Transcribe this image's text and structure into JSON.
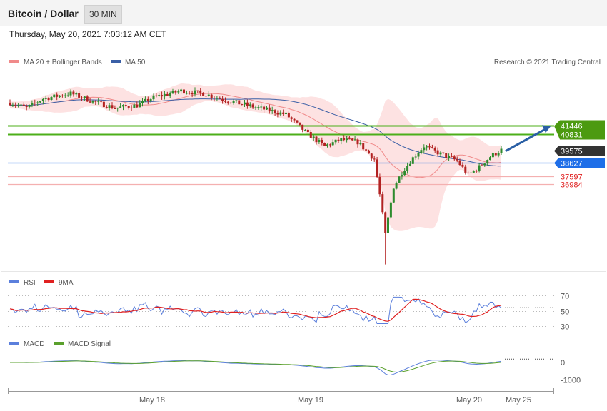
{
  "header": {
    "title": "Bitcoin / Dollar",
    "timeframe": "30 MIN"
  },
  "timestamp": "Thursday, May 20, 2021 7:03:12 AM CET",
  "legend_main": {
    "bb": "MA 20 + Bollinger Bands",
    "ma50": "MA 50",
    "credit": "Research © 2021 Trading Central"
  },
  "legend_rsi": {
    "rsi": "RSI",
    "ma9": "9MA"
  },
  "legend_macd": {
    "macd": "MACD",
    "signal": "MACD Signal"
  },
  "colors": {
    "up": "#2e8b2e",
    "down": "#b22222",
    "bb_fill": "#fde2e2",
    "ma20": "#f08a8a",
    "ma50": "#3a5fa6",
    "resistance": "#4caf1a",
    "support_blue": "#1e6ee8",
    "support_red": "#f4b0b0",
    "current": "#333333",
    "rsi": "#5b7fdc",
    "rsi_ma": "#e02020",
    "macd": "#5b7fdc",
    "macd_signal": "#5aa02c",
    "arrow": "#2a5fa5"
  },
  "chart_data": [
    {
      "type": "candlestick",
      "title": "Bitcoin / Dollar",
      "ylim": [
        30500,
        45800
      ],
      "x_labels": [
        "May 18",
        "May 19",
        "May 20",
        "May 25"
      ],
      "levels": [
        {
          "value": 41446,
          "label": "41446",
          "kind": "resistance"
        },
        {
          "value": 40831,
          "label": "40831",
          "kind": "resistance"
        },
        {
          "value": 39575,
          "label": "39575",
          "kind": "current"
        },
        {
          "value": 38627,
          "label": "38627",
          "kind": "support_blue"
        },
        {
          "value": 37597,
          "label": "37597",
          "kind": "support_red"
        },
        {
          "value": 36984,
          "label": "36984",
          "kind": "support_red"
        }
      ],
      "arrow": {
        "from_value": 39575,
        "to_value": 41446
      }
    },
    {
      "type": "line",
      "title": "RSI",
      "ylim": [
        25,
        75
      ],
      "yticks": [
        70,
        50,
        30
      ],
      "series": [
        {
          "name": "RSI"
        },
        {
          "name": "9MA"
        }
      ],
      "last_value": 54
    },
    {
      "type": "line",
      "title": "MACD",
      "ylim": [
        -1550,
        650
      ],
      "yticks": [
        0,
        -1000
      ],
      "series": [
        {
          "name": "MACD"
        },
        {
          "name": "MACD Signal"
        }
      ],
      "last_value": 190
    }
  ]
}
